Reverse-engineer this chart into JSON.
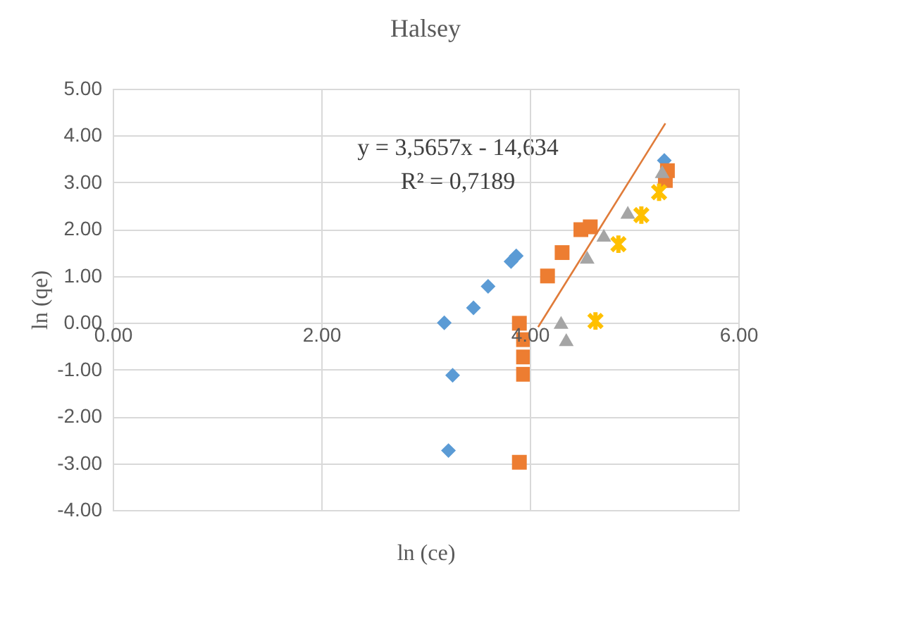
{
  "chart_data": {
    "type": "scatter",
    "title": "Halsey",
    "xlabel": "ln (ce)",
    "ylabel": "ln (qe)",
    "xlim": [
      0,
      6
    ],
    "xticks": [
      {
        "value": 0,
        "label": "0.00"
      },
      {
        "value": 2,
        "label": "2.00"
      },
      {
        "value": 4,
        "label": "4.00"
      },
      {
        "value": 6,
        "label": "6.00"
      }
    ],
    "ylim": [
      -4,
      5
    ],
    "yticks": [
      {
        "value": -4,
        "label": "-4.00"
      },
      {
        "value": -3,
        "label": "-3.00"
      },
      {
        "value": -2,
        "label": "-2.00"
      },
      {
        "value": -1,
        "label": "-1.00"
      },
      {
        "value": 0,
        "label": "0.00"
      },
      {
        "value": 1,
        "label": "1.00"
      },
      {
        "value": 2,
        "label": "2.00"
      },
      {
        "value": 3,
        "label": "3.00"
      },
      {
        "value": 4,
        "label": "4.00"
      },
      {
        "value": 5,
        "label": "5.00"
      }
    ],
    "grid": true,
    "annotations": [
      "y = 3,5657x - 14,634",
      "R² = 0,7189"
    ],
    "series": [
      {
        "marker": "diamond",
        "color": "#5b9bd5",
        "x": [
          3.18,
          3.46,
          3.6,
          3.82,
          3.87,
          3.26,
          3.22,
          5.29
        ],
        "values": [
          0.0,
          0.32,
          0.78,
          1.31,
          1.43,
          -1.12,
          -2.73,
          3.47
        ]
      },
      {
        "marker": "square",
        "color": "#ed7d31",
        "x": [
          3.9,
          3.94,
          3.94,
          3.94,
          3.9,
          4.17,
          4.31,
          4.49,
          4.58,
          5.32,
          5.3
        ],
        "values": [
          -0.01,
          -0.36,
          -0.73,
          -1.1,
          -2.98,
          1.0,
          1.5,
          1.99,
          2.05,
          3.25,
          3.04
        ]
      },
      {
        "marker": "triangle",
        "color": "#a5a5a5",
        "x": [
          4.3,
          4.35,
          4.55,
          4.71,
          4.94,
          5.27
        ],
        "values": [
          0.01,
          -0.36,
          1.4,
          1.87,
          2.36,
          3.23
        ]
      },
      {
        "marker": "cross",
        "color": "#ffc000",
        "x": [
          4.63,
          4.85,
          5.07,
          5.24
        ],
        "values": [
          0.04,
          1.68,
          2.3,
          2.79
        ]
      },
      {
        "type": "line",
        "line_style": "solid",
        "color": "#e07b39",
        "x": [
          4.08,
          5.3
        ],
        "values": [
          -0.09,
          4.26
        ]
      }
    ]
  }
}
